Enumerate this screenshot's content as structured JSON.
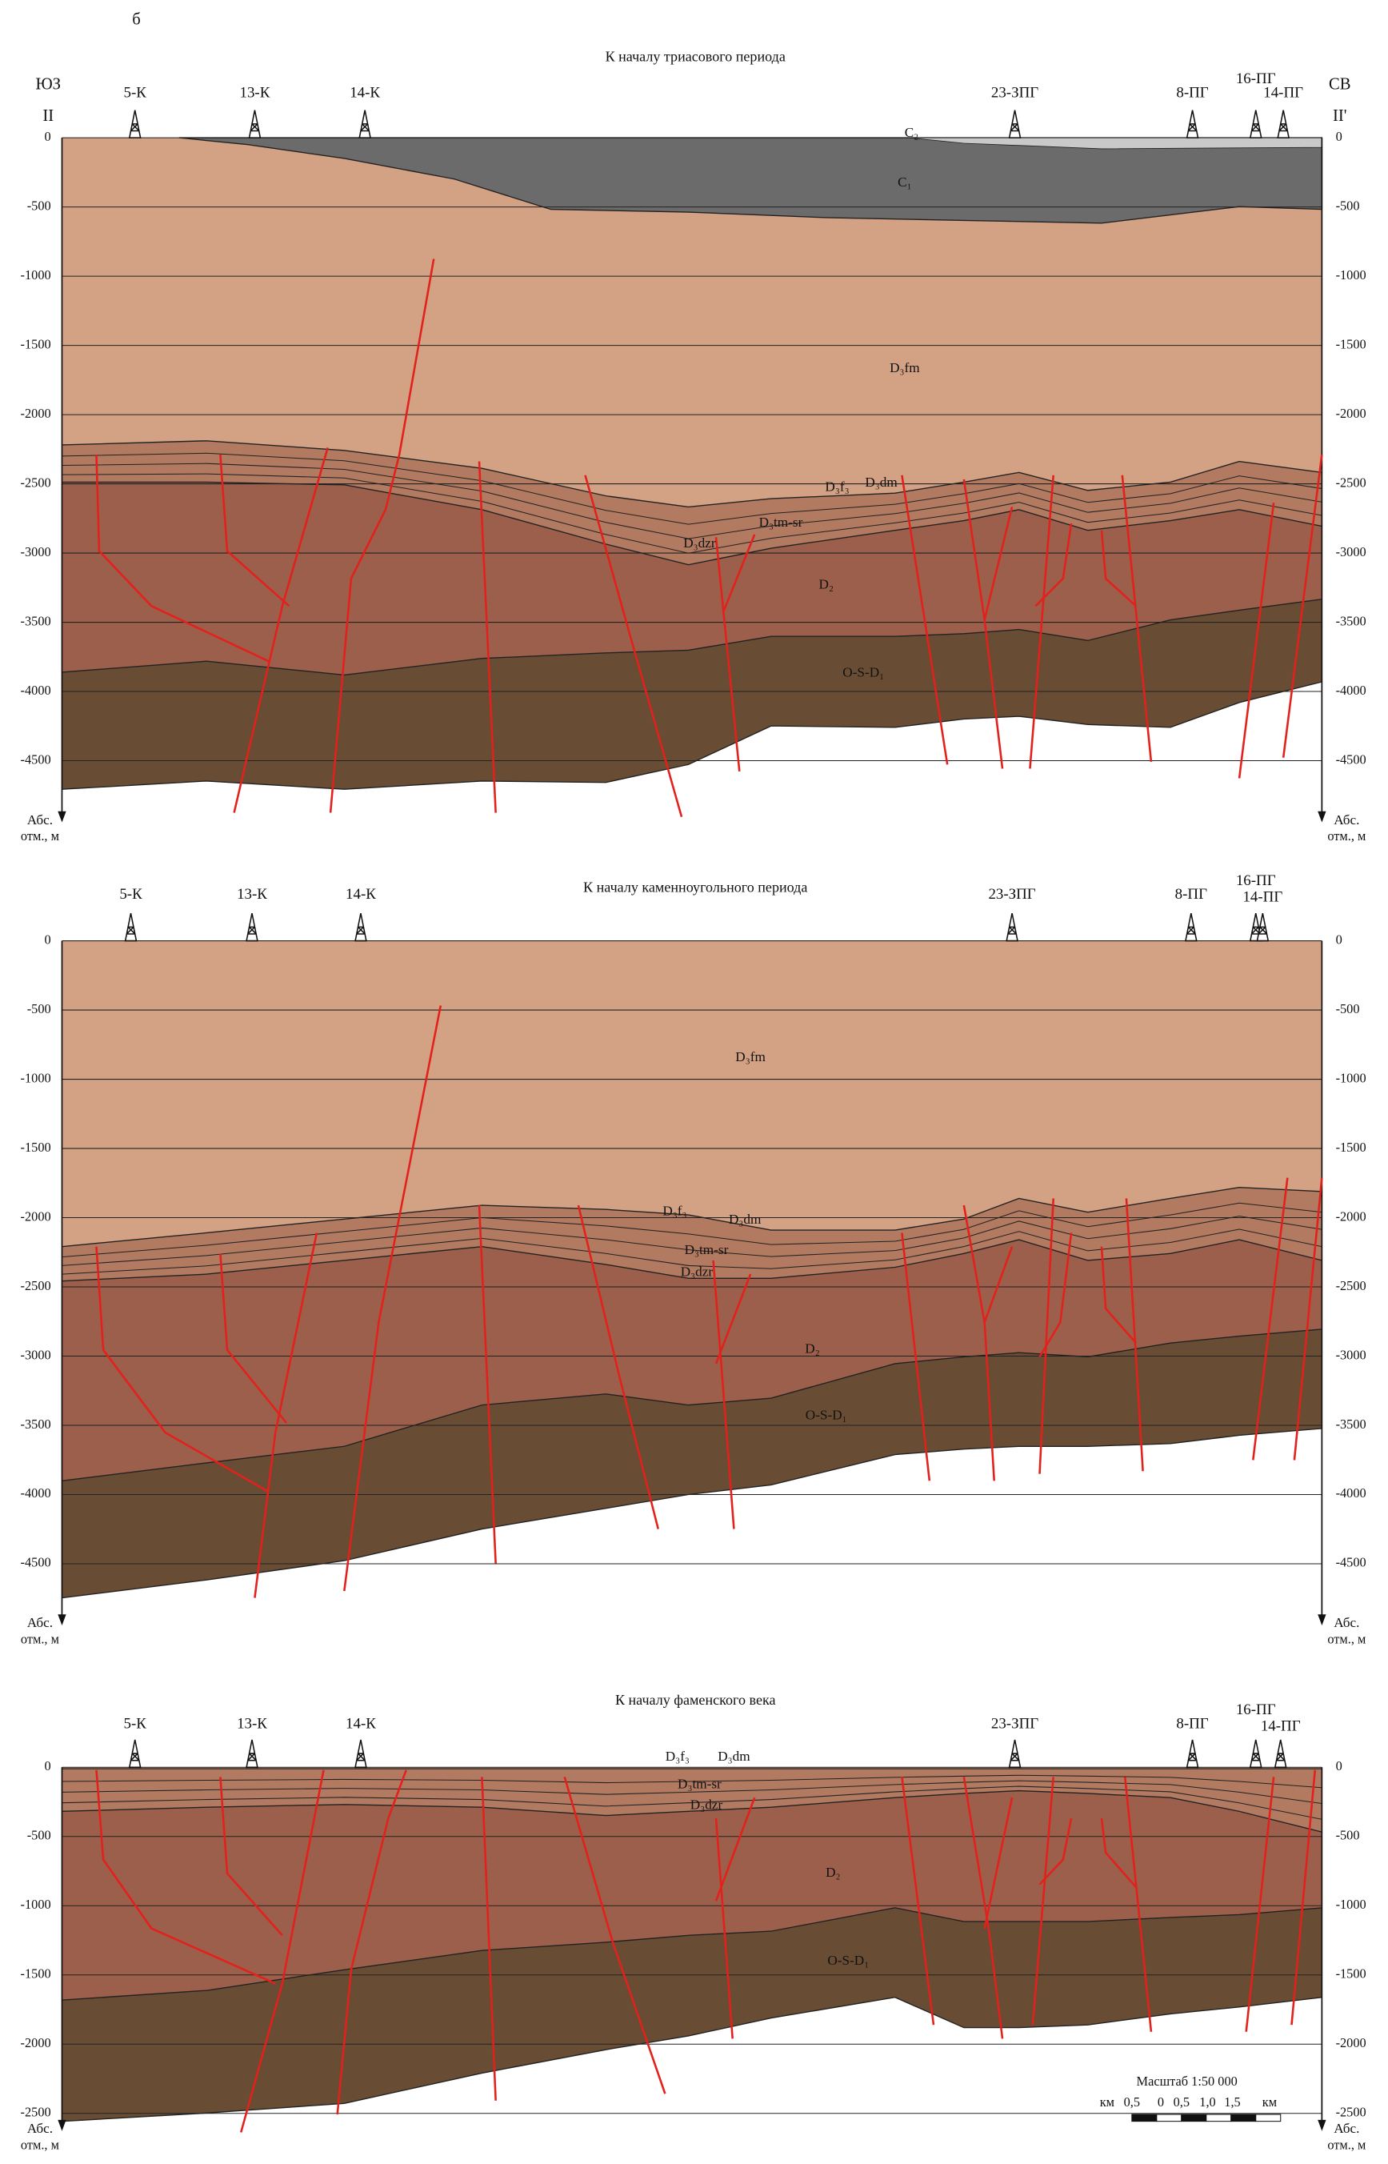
{
  "figure_label": "б",
  "side_labels": {
    "left": [
      "ЮЗ",
      "II"
    ],
    "right": [
      "СВ",
      "II'"
    ]
  },
  "axis_label": [
    "Абс.",
    "отм., м"
  ],
  "panels": [
    {
      "title": "К началу триасового периода",
      "wells": [
        "5-К",
        "13-К",
        "14-К",
        "23-ЗПГ",
        "8-ПГ",
        "16-ПГ",
        "14-ПГ"
      ],
      "yticks": [
        0,
        -500,
        -1000,
        -1500,
        -2000,
        -2500,
        -3000,
        -3500,
        -4000,
        -4500
      ],
      "layers": [
        "C₂",
        "C₁",
        "D₃fm",
        "D₃f₃",
        "D₃dm",
        "D₃tm-sr",
        "D₃dzr",
        "D₂",
        "O-S-D₁"
      ]
    },
    {
      "title": "К началу каменноугольного периода",
      "wells": [
        "5-К",
        "13-К",
        "14-К",
        "23-ЗПГ",
        "8-ПГ",
        "16-ПГ",
        "14-ПГ"
      ],
      "yticks": [
        0,
        -500,
        -1000,
        -1500,
        -2000,
        -2500,
        -3000,
        -3500,
        -4000,
        -4500
      ],
      "layers": [
        "D₃fm",
        "D₃f₃",
        "D₃dm",
        "D₃tm-sr",
        "D₃dzr",
        "D₂",
        "O-S-D₁"
      ]
    },
    {
      "title": "К началу фаменского века",
      "wells": [
        "5-К",
        "13-К",
        "14-К",
        "23-ЗПГ",
        "8-ПГ",
        "16-ПГ",
        "14-ПГ"
      ],
      "yticks": [
        0,
        -500,
        -1000,
        -1500,
        -2000,
        -2500
      ],
      "layers": [
        "D₃f₃",
        "D₃dm",
        "D₃tm-sr",
        "D₃dzr",
        "D₂",
        "O-S-D₁"
      ]
    }
  ],
  "scale": {
    "title": "Масштаб 1:50 000",
    "labels": [
      "км",
      "0,5",
      "0",
      "0,5",
      "1,0",
      "1,5",
      "км"
    ]
  }
}
